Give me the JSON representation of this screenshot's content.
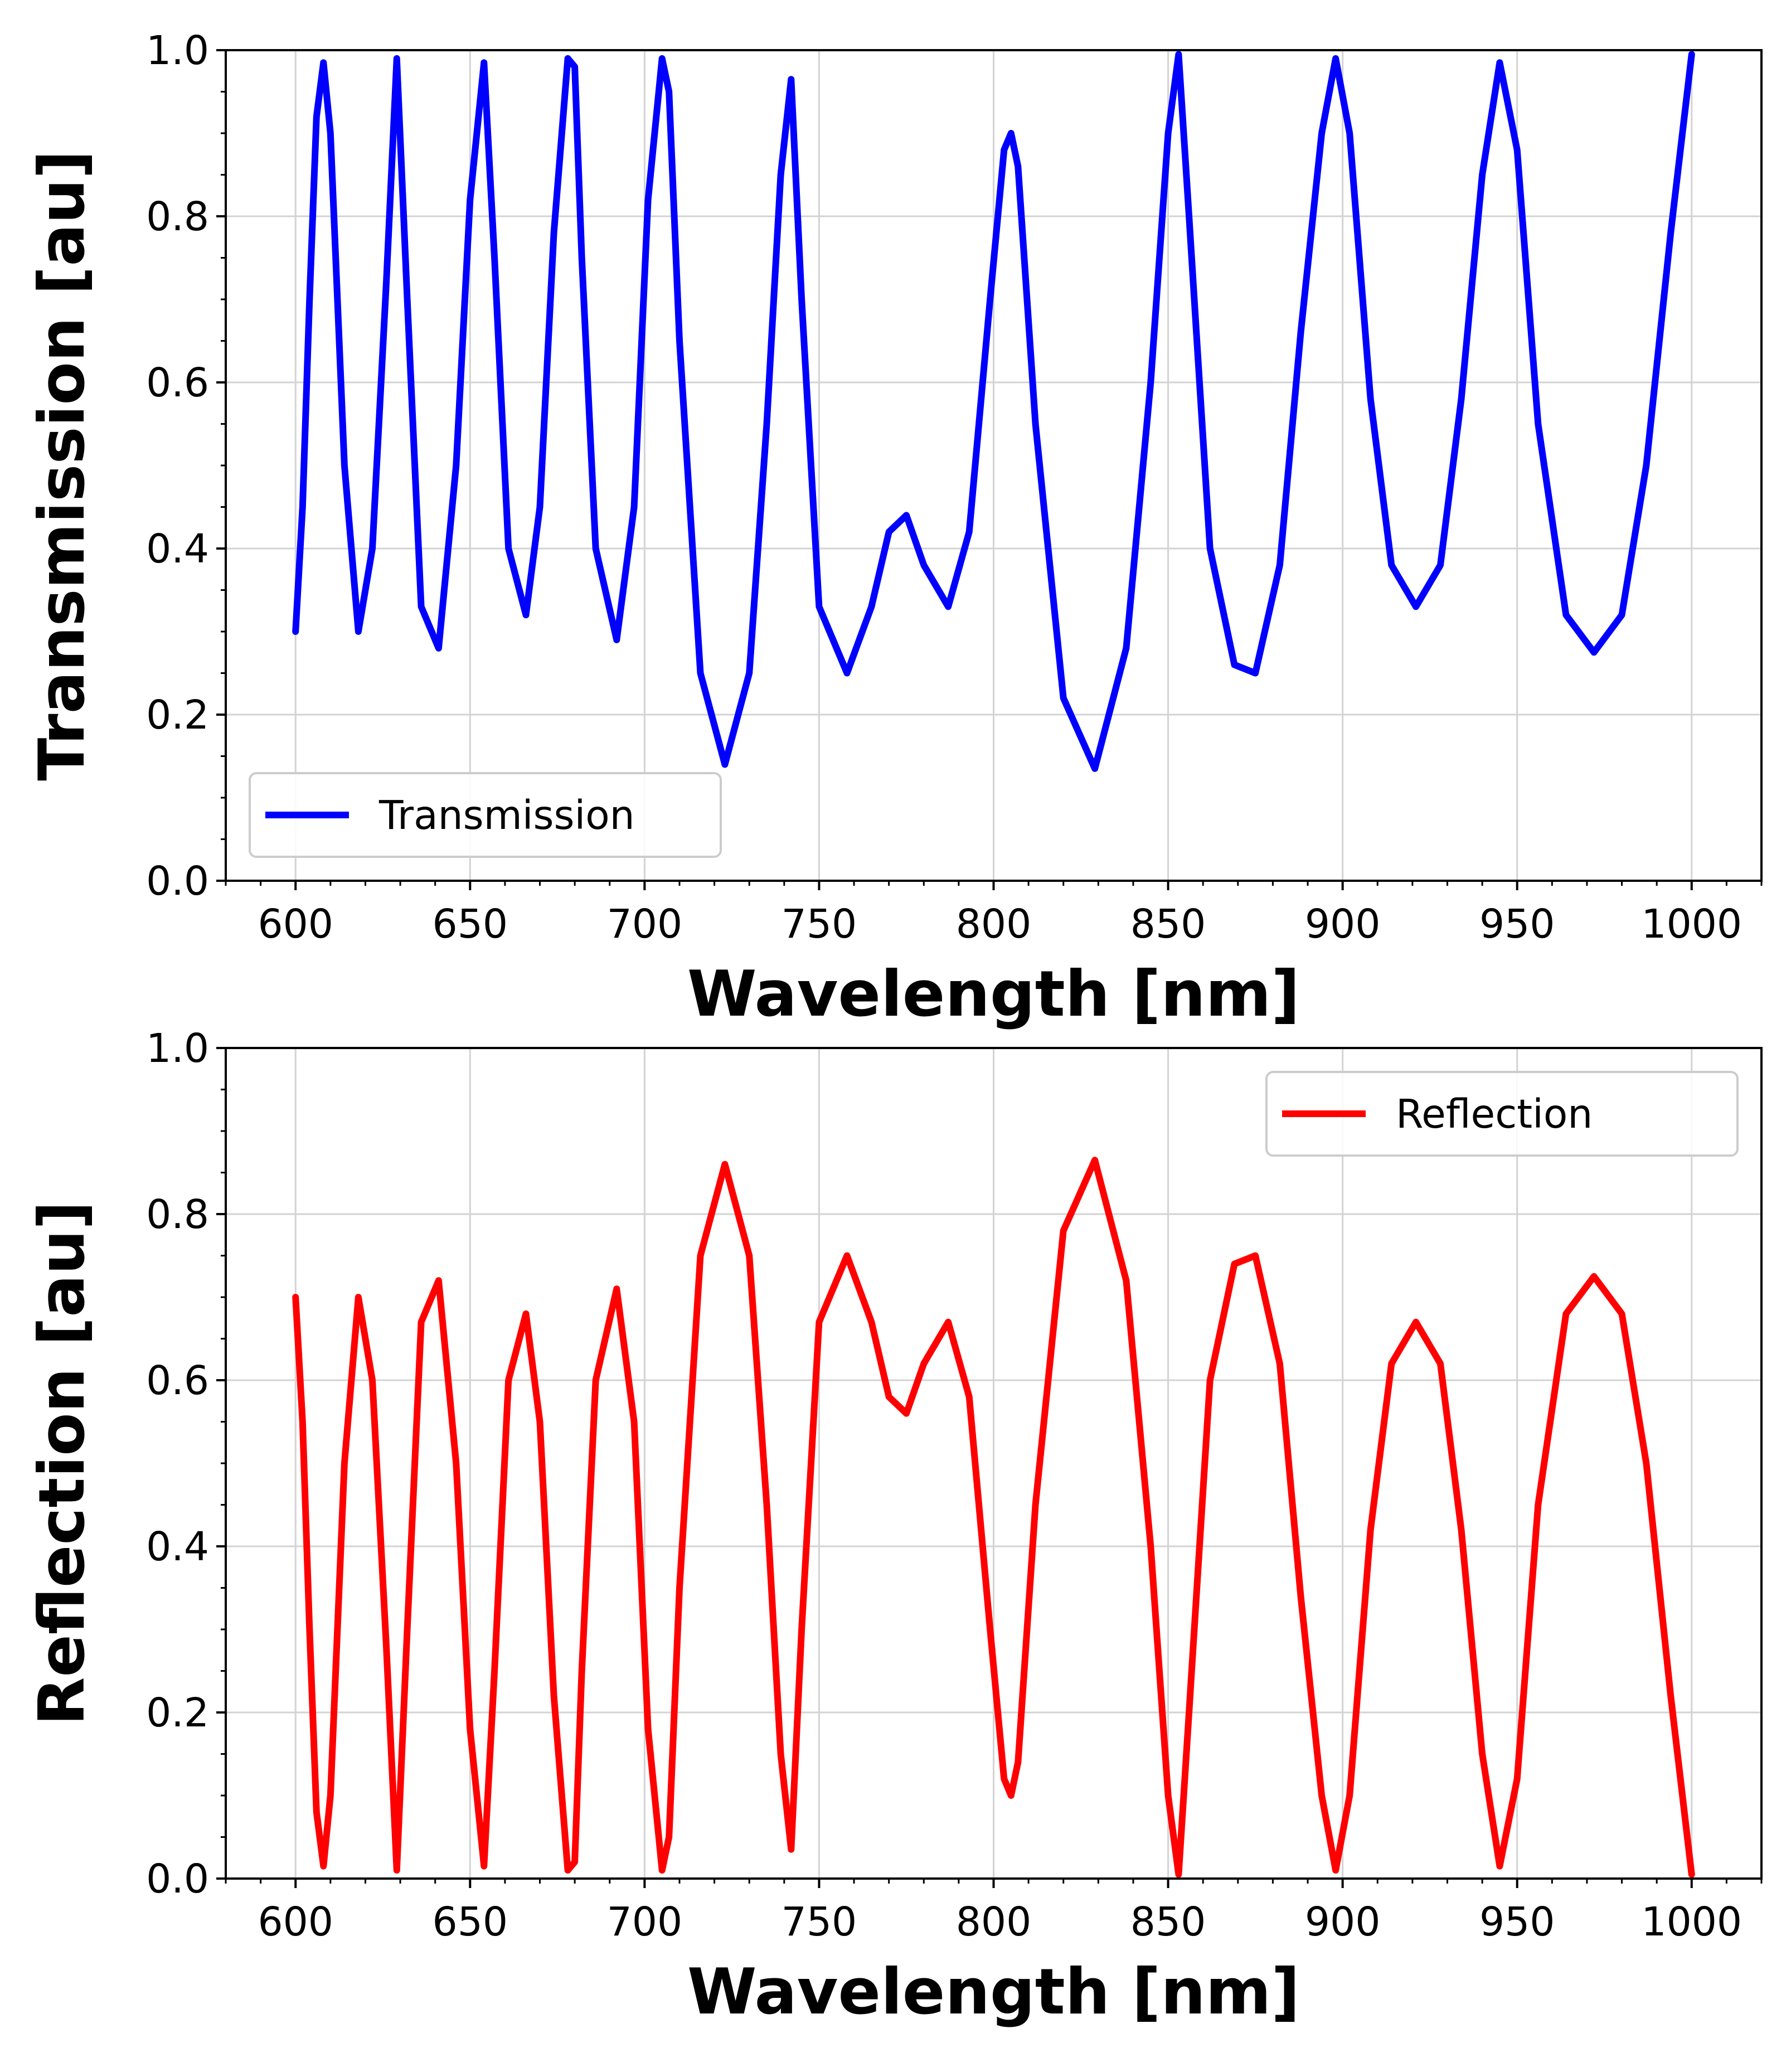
{
  "chart_data": [
    {
      "type": "line",
      "xlabel": "Wavelength [nm]",
      "ylabel": "Transmission [au]",
      "xlim": [
        580,
        1020
      ],
      "ylim": [
        0,
        1
      ],
      "xticks": [
        "600",
        "650",
        "700",
        "750",
        "800",
        "850",
        "900",
        "950",
        "1000"
      ],
      "yticks": [
        "0.0",
        "0.2",
        "0.4",
        "0.6",
        "0.8",
        "1.0"
      ],
      "grid": true,
      "legend_position": "lower-left",
      "series": [
        {
          "name": "Transmission",
          "color": "#0000ff",
          "x": [
            600,
            602,
            604,
            606,
            608,
            610,
            614,
            618,
            622,
            626,
            629,
            632,
            636,
            641,
            646,
            650,
            654,
            657,
            661,
            666,
            670,
            674,
            678,
            680,
            682,
            686,
            692,
            697,
            701,
            705,
            707,
            710,
            716,
            723,
            730,
            735,
            739,
            742,
            745,
            750,
            758,
            765,
            770,
            775,
            780,
            787,
            793,
            799,
            803,
            805,
            807,
            812,
            820,
            829,
            838,
            845,
            850,
            853,
            856,
            862,
            869,
            875,
            882,
            888,
            894,
            898,
            902,
            908,
            914,
            921,
            928,
            934,
            940,
            945,
            950,
            956,
            964,
            972,
            980,
            987,
            994,
            1000
          ],
          "y": [
            0.3,
            0.45,
            0.7,
            0.92,
            0.985,
            0.9,
            0.5,
            0.3,
            0.4,
            0.72,
            0.99,
            0.7,
            0.33,
            0.28,
            0.5,
            0.82,
            0.985,
            0.75,
            0.4,
            0.32,
            0.45,
            0.78,
            0.99,
            0.98,
            0.75,
            0.4,
            0.29,
            0.45,
            0.82,
            0.99,
            0.95,
            0.65,
            0.25,
            0.14,
            0.25,
            0.55,
            0.85,
            0.965,
            0.7,
            0.33,
            0.25,
            0.33,
            0.42,
            0.44,
            0.38,
            0.33,
            0.42,
            0.7,
            0.88,
            0.9,
            0.86,
            0.55,
            0.22,
            0.135,
            0.28,
            0.6,
            0.9,
            0.995,
            0.8,
            0.4,
            0.26,
            0.25,
            0.38,
            0.66,
            0.9,
            0.99,
            0.9,
            0.58,
            0.38,
            0.33,
            0.38,
            0.58,
            0.85,
            0.985,
            0.88,
            0.55,
            0.32,
            0.275,
            0.32,
            0.5,
            0.78,
            0.995
          ]
        }
      ]
    },
    {
      "type": "line",
      "xlabel": "Wavelength [nm]",
      "ylabel": "Reflection [au]",
      "xlim": [
        580,
        1020
      ],
      "ylim": [
        0,
        1
      ],
      "xticks": [
        "600",
        "650",
        "700",
        "750",
        "800",
        "850",
        "900",
        "950",
        "1000"
      ],
      "yticks": [
        "0.0",
        "0.2",
        "0.4",
        "0.6",
        "0.8",
        "1.0"
      ],
      "grid": true,
      "legend_position": "upper-right",
      "series": [
        {
          "name": "Reflection",
          "color": "#ff0000",
          "x": [
            600,
            602,
            604,
            606,
            608,
            610,
            614,
            618,
            622,
            626,
            629,
            632,
            636,
            641,
            646,
            650,
            654,
            657,
            661,
            666,
            670,
            674,
            678,
            680,
            682,
            686,
            692,
            697,
            701,
            705,
            707,
            710,
            716,
            723,
            730,
            735,
            739,
            742,
            745,
            750,
            758,
            765,
            770,
            775,
            780,
            787,
            793,
            799,
            803,
            805,
            807,
            812,
            820,
            829,
            838,
            845,
            850,
            853,
            856,
            862,
            869,
            875,
            882,
            888,
            894,
            898,
            902,
            908,
            914,
            921,
            928,
            934,
            940,
            945,
            950,
            956,
            964,
            972,
            980,
            987,
            994,
            1000
          ],
          "y": [
            0.7,
            0.55,
            0.3,
            0.08,
            0.015,
            0.1,
            0.5,
            0.7,
            0.6,
            0.28,
            0.01,
            0.3,
            0.67,
            0.72,
            0.5,
            0.18,
            0.015,
            0.25,
            0.6,
            0.68,
            0.55,
            0.22,
            0.01,
            0.02,
            0.25,
            0.6,
            0.71,
            0.55,
            0.18,
            0.01,
            0.05,
            0.35,
            0.75,
            0.86,
            0.75,
            0.45,
            0.15,
            0.035,
            0.3,
            0.67,
            0.75,
            0.67,
            0.58,
            0.56,
            0.62,
            0.67,
            0.58,
            0.3,
            0.12,
            0.1,
            0.14,
            0.45,
            0.78,
            0.865,
            0.72,
            0.4,
            0.1,
            0.005,
            0.2,
            0.6,
            0.74,
            0.75,
            0.62,
            0.34,
            0.1,
            0.01,
            0.1,
            0.42,
            0.62,
            0.67,
            0.62,
            0.42,
            0.15,
            0.015,
            0.12,
            0.45,
            0.68,
            0.725,
            0.68,
            0.5,
            0.22,
            0.005
          ]
        }
      ]
    }
  ]
}
